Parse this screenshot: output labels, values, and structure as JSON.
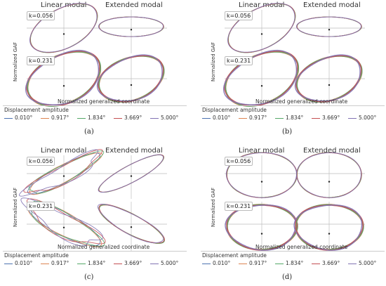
{
  "panels": [
    {
      "id": "a",
      "caption": "(a)",
      "left_title": "Linear modal",
      "right_title": "Extended modal",
      "y_label": "Normalized GAF",
      "x_label": "Normalized generalized coordinate",
      "k_labels": [
        "k=0.056",
        "k=0.231"
      ],
      "legend_title": "Displacement amplitude",
      "legend": [
        "0.010°",
        "0.917°",
        "1.834°",
        "3.669°",
        "5.000°"
      ]
    },
    {
      "id": "b",
      "caption": "(b)",
      "left_title": "Linear modal",
      "right_title": "Extended modal",
      "y_label": "Normalized GAF",
      "x_label": "Normalized generalized coordinate",
      "k_labels": [
        "k=0.056",
        "k=0.231"
      ],
      "legend_title": "Displacement amplitude",
      "legend": [
        "0.010°",
        "0.917°",
        "1.834°",
        "3.669°",
        "5.000°"
      ]
    },
    {
      "id": "c",
      "caption": "(c)",
      "left_title": "Linear modal",
      "right_title": "Extended modal",
      "y_label": "Normalized GAF",
      "x_label": "Normalized generalized coordinate",
      "k_labels": [
        "k=0.056",
        "k=0.231"
      ],
      "legend_title": "Displacement amplitude",
      "legend": [
        "0.010°",
        "0.917°",
        "1.834°",
        "3.669°",
        "5.000°"
      ]
    },
    {
      "id": "d",
      "caption": "(d)",
      "left_title": "Linear modal",
      "right_title": "Extended modal",
      "y_label": "Normalized GAF",
      "x_label": "Normalized generalized coordinate",
      "k_labels": [
        "k=0.056",
        "k=0.231"
      ],
      "legend_title": "Displacement amplitude",
      "legend": [
        "0.010°",
        "0.917°",
        "1.834°",
        "3.669°",
        "5.000°"
      ]
    }
  ],
  "series_colors": [
    "#4c72b0",
    "#dd8452",
    "#55a868",
    "#c44e52",
    "#8172b3"
  ]
}
